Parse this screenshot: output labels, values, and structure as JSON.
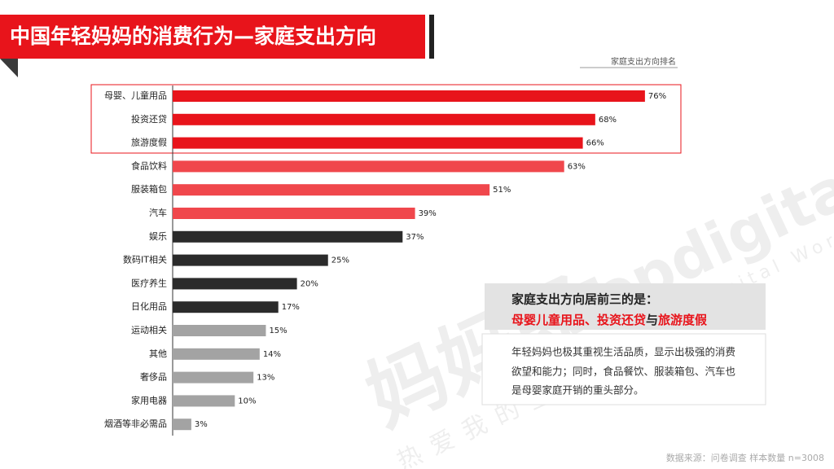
{
  "chart_data": {
    "type": "bar",
    "orientation": "horizontal",
    "title": "中国年轻妈妈的消费行为—家庭支出方向",
    "subtitle": "家庭支出方向排名",
    "categories": [
      "母婴、儿童用品",
      "投资还贷",
      "旅游度假",
      "食品饮料",
      "服装箱包",
      "汽车",
      "娱乐",
      "数码IT相关",
      "医疗养生",
      "日化用品",
      "运动相关",
      "其他",
      "奢侈品",
      "家用电器",
      "烟酒等非必需品"
    ],
    "values": [
      76,
      68,
      66,
      63,
      51,
      39,
      37,
      25,
      20,
      17,
      15,
      14,
      13,
      10,
      3
    ],
    "value_labels": [
      "76%",
      "68%",
      "66%",
      "63%",
      "51%",
      "39%",
      "37%",
      "25%",
      "20%",
      "17%",
      "15%",
      "14%",
      "13%",
      "10%",
      "3%"
    ],
    "colors": [
      "#e8141b",
      "#e8141b",
      "#e8141b",
      "#f0474c",
      "#f0474c",
      "#f0474c",
      "#2b2b2b",
      "#2b2b2b",
      "#2b2b2b",
      "#2b2b2b",
      "#a3a3a3",
      "#a3a3a3",
      "#a3a3a3",
      "#a3a3a3",
      "#a3a3a3"
    ],
    "highlight_count": 3
  },
  "callout": {
    "heading": "家庭支出方向居前三的是：",
    "highlight": [
      "母婴儿童用品、投资还贷",
      "与",
      "旅游度假"
    ],
    "body": [
      "年轻妈妈也极其重视生活品质，显示出极强的消费",
      "欲望和能力；同时，食品餐饮、服装箱包、汽车也",
      "是母婴家庭开销的重头部分。"
    ]
  },
  "watermark": {
    "brand": "妈妈郎",
    "logo": "Topdigital",
    "tagline": "Top digital World",
    "slogan": "热爱我的全部"
  },
  "source": "数据来源：问卷调查 样本数量 n=3008"
}
